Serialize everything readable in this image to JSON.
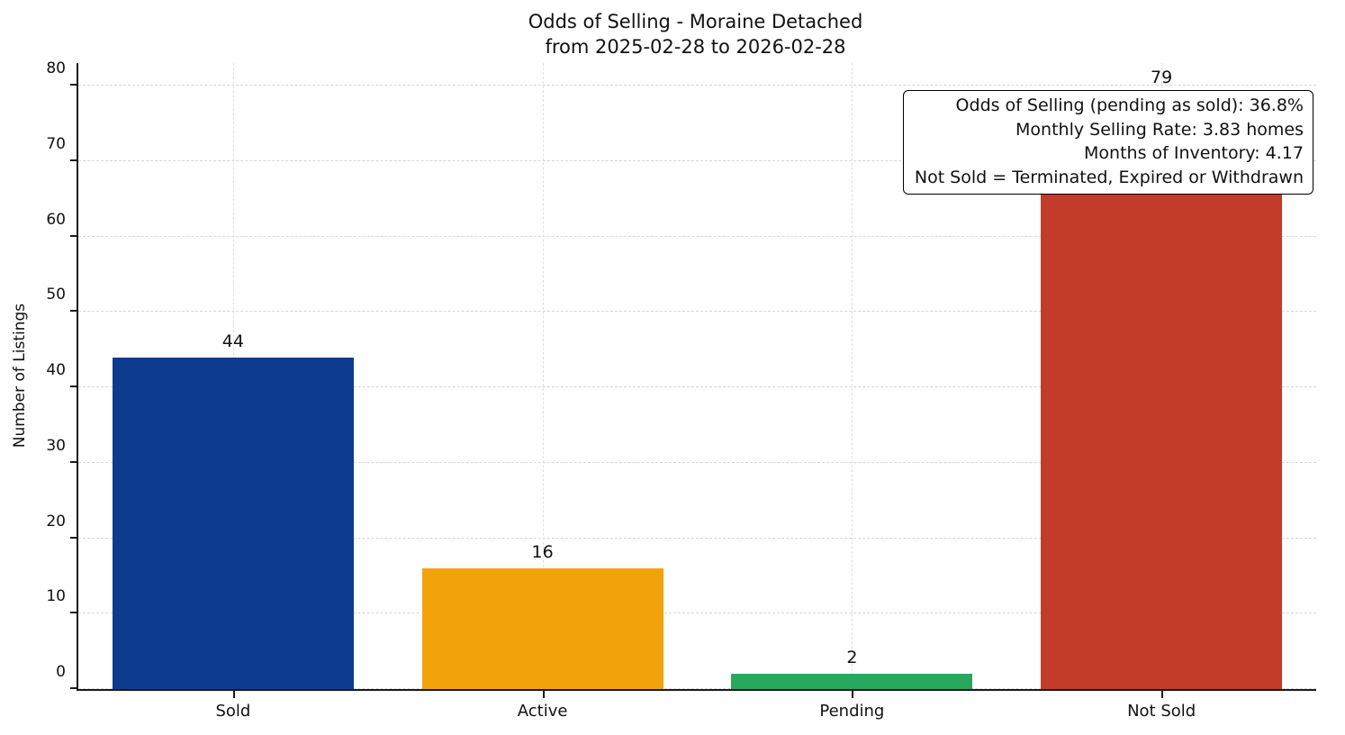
{
  "chart_data": {
    "type": "bar",
    "title": "Odds of Selling - Moraine Detached",
    "subtitle": "from 2025-02-28 to 2026-02-28",
    "ylabel": "Number of Listings",
    "xlabel": "",
    "categories": [
      "Sold",
      "Active",
      "Pending",
      "Not Sold"
    ],
    "values": [
      44,
      16,
      2,
      79
    ],
    "colors": [
      "#0d3c8f",
      "#f2a30b",
      "#27a85c",
      "#c23b2b"
    ],
    "ylim": [
      0,
      83
    ],
    "yticks": [
      0,
      10,
      20,
      30,
      40,
      50,
      60,
      70,
      80
    ],
    "grid": "dashed",
    "legend": "none",
    "annotation": {
      "lines": [
        "Odds of Selling (pending as sold): 36.8%",
        "Monthly Selling Rate: 3.83 homes",
        "Months of Inventory: 4.17",
        "Not Sold = Terminated, Expired or Withdrawn"
      ]
    }
  }
}
